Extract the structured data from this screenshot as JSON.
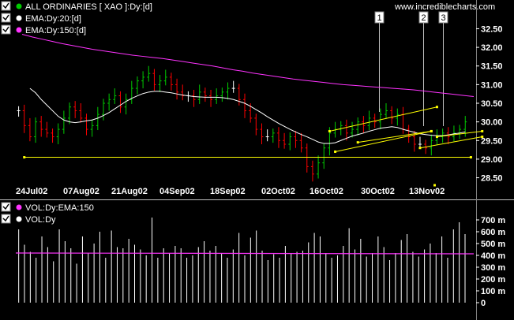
{
  "header": {
    "site": "www.incrediblecharts.com",
    "legend": [
      {
        "label": "ALL ORDINARIES [ XAO ]:Dy:[d]",
        "color": "#00cc00",
        "checked": true
      },
      {
        "label": "EMA:Dy:20:[d]",
        "color": "#ffffff",
        "checked": true
      },
      {
        "label": "EMA:Dy:150:[d]",
        "color": "#ff33ff",
        "checked": true
      }
    ]
  },
  "lower_legend": [
    {
      "label": "VOL:Dy:EMA:150",
      "color": "#ff33ff",
      "checked": true
    },
    {
      "label": "VOL:Dy",
      "color": "#ffffff",
      "checked": true
    }
  ],
  "annotations": [
    "1",
    "2",
    "3"
  ],
  "colors": {
    "background": "#000000",
    "up_bar": "#00cc00",
    "down_bar": "#ff0000",
    "neutral_bar": "#ffffff",
    "ema20": "#ffffff",
    "ema150": "#ff33ff",
    "trendline": "#ffff00",
    "volume": "#ffffff"
  },
  "chart_data": [
    {
      "type": "line",
      "ylim": [
        28.3,
        32.7
      ],
      "yticks": [
        "32.50",
        "32.00",
        "31.50",
        "31.00",
        "30.50",
        "30.00",
        "29.50",
        "29.00",
        "28.50"
      ],
      "x_tick_labels": [
        "24Jul02",
        "07Aug02",
        "21Aug02",
        "04Sep02",
        "18Sep02",
        "02Oct02",
        "16Oct02",
        "30Oct02",
        "13Nov02"
      ],
      "closes": [
        30.3,
        29.9,
        29.6,
        30.0,
        29.8,
        29.7,
        29.6,
        29.8,
        30.1,
        30.4,
        30.3,
        30.1,
        29.8,
        29.9,
        30.2,
        30.5,
        30.6,
        30.7,
        30.4,
        30.6,
        30.9,
        31.1,
        31.2,
        31.3,
        31.0,
        31.1,
        31.2,
        31.0,
        30.8,
        30.7,
        30.7,
        30.6,
        30.8,
        30.7,
        30.6,
        30.7,
        30.8,
        30.9,
        30.9,
        30.6,
        30.3,
        30.1,
        29.8,
        29.6,
        29.6,
        29.7,
        29.5,
        29.4,
        29.6,
        29.5,
        29.3,
        28.8,
        28.6,
        28.9,
        29.3,
        29.7,
        29.8,
        29.9,
        29.7,
        29.8,
        30.0,
        29.9,
        30.1,
        30.0,
        30.2,
        30.3,
        30.1,
        30.2,
        29.8,
        29.6,
        29.4,
        29.4,
        29.3,
        29.5,
        29.6,
        29.7,
        29.6,
        29.7,
        29.8,
        30.0
      ],
      "ema20": [
        30.9,
        30.78,
        30.6,
        30.45,
        30.3,
        30.15,
        30.05,
        30.0,
        29.98,
        30.0,
        30.03,
        30.05,
        30.1,
        30.17,
        30.25,
        30.35,
        30.45,
        30.55,
        30.63,
        30.7,
        30.76,
        30.8,
        30.82,
        30.82,
        30.8,
        30.78,
        30.75,
        30.72,
        30.7,
        30.68,
        30.67,
        30.66,
        30.66,
        30.66,
        30.65,
        30.63,
        30.6,
        30.55,
        30.5,
        30.42,
        30.33,
        30.24,
        30.14,
        30.05,
        29.96,
        29.88,
        29.8,
        29.73,
        29.66,
        29.6,
        29.53,
        29.46,
        29.42,
        29.42,
        29.44,
        29.5,
        29.56,
        29.62,
        29.66,
        29.7,
        29.75,
        29.79,
        29.83,
        29.85,
        29.87,
        29.85,
        29.8,
        29.76,
        29.72,
        29.68,
        29.66,
        29.64,
        29.63,
        29.63,
        29.65,
        29.68,
        29.7,
        29.73
      ],
      "ema150": [
        32.35,
        32.28,
        32.22,
        32.16,
        32.1,
        32.05,
        32.0,
        31.95,
        31.91,
        31.87,
        31.83,
        31.79,
        31.76,
        31.73,
        31.7,
        31.66,
        31.62,
        31.58,
        31.54,
        31.5,
        31.45,
        31.4,
        31.36,
        31.31,
        31.27,
        31.23,
        31.19,
        31.15,
        31.12,
        31.09,
        31.06,
        31.03,
        31.0,
        30.98,
        30.96,
        30.94,
        30.92,
        30.9,
        30.88,
        30.86,
        30.83,
        30.8,
        30.77,
        30.74,
        30.71,
        30.68
      ],
      "trendlines": [
        {
          "from": [
            1,
            29.05
          ],
          "to": [
            80,
            29.05
          ]
        },
        {
          "from": [
            55,
            29.75
          ],
          "to": [
            74,
            30.4
          ]
        },
        {
          "from": [
            56,
            29.2
          ],
          "to": [
            73,
            29.75
          ]
        },
        {
          "from": [
            60,
            29.45
          ],
          "to": [
            73,
            29.75
          ]
        },
        {
          "from": [
            71,
            29.3
          ],
          "to": [
            82,
            29.6
          ]
        },
        {
          "from": [
            74,
            29.6
          ],
          "to": [
            82,
            29.75
          ]
        }
      ],
      "support_marker": 28.3
    },
    {
      "type": "bar",
      "ylim": [
        0,
        760
      ],
      "yticks": [
        "700 m",
        "600 m",
        "500 m",
        "400 m",
        "300 m",
        "200 m",
        "100 m",
        "0"
      ],
      "volumes": [
        620,
        490,
        430,
        380,
        560,
        470,
        350,
        620,
        520,
        460,
        330,
        560,
        420,
        500,
        600,
        380,
        610,
        470,
        460,
        540,
        490,
        450,
        400,
        720,
        380,
        460,
        420,
        480,
        460,
        380,
        400,
        470,
        520,
        440,
        480,
        420,
        380,
        450,
        590,
        400,
        550,
        610,
        440,
        360,
        410,
        380,
        480,
        420,
        430,
        440,
        510,
        590,
        560,
        420,
        380,
        400,
        480,
        630,
        450,
        540,
        390,
        420,
        560,
        470,
        360,
        420,
        530,
        580,
        430,
        390,
        450,
        500,
        420,
        560,
        380,
        620,
        680,
        580
      ],
      "ema150": 420
    }
  ]
}
